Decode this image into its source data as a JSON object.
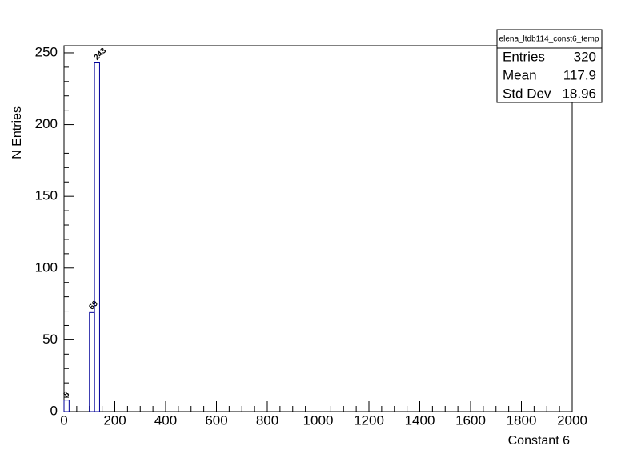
{
  "chart_data": {
    "type": "histogram",
    "bins": [
      0,
      20,
      40,
      60,
      80,
      100,
      120,
      140
    ],
    "values": [
      8,
      0,
      0,
      0,
      0,
      69,
      243
    ],
    "color": "#000099",
    "xlabel": "Constant 6",
    "ylabel": "N Entries",
    "xlim": [
      0,
      2000
    ],
    "ylim": [
      0,
      255
    ],
    "xticks": [
      0,
      200,
      400,
      600,
      800,
      1000,
      1200,
      1400,
      1600,
      1800,
      2000
    ],
    "yticks": [
      0,
      50,
      100,
      150,
      200,
      250
    ],
    "stats": {
      "title": "elena_ltdb114_const6_temp",
      "rows": [
        {
          "label": "Entries",
          "value": 320
        },
        {
          "label": "Mean",
          "value": 117.9
        },
        {
          "label": "Std Dev",
          "value": 18.96
        }
      ]
    }
  }
}
